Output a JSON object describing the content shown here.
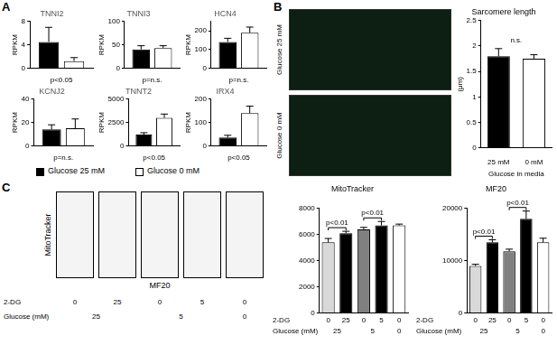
{
  "panel_labels": [
    "A",
    "B",
    "C"
  ],
  "micrographs": [
    "Glucose 25 mM",
    "Glucose 0 mM"
  ],
  "flow_plots": {
    "y_label": "MitoTracker",
    "x_label": "MF20",
    "rows": [
      {
        "label": "2-DG",
        "cells": [
          {
            "label": "0",
            "span": 1
          },
          {
            "label": "25",
            "span": 1
          },
          {
            "label": "0",
            "span": 1
          },
          {
            "label": "5",
            "span": 1
          },
          {
            "label": "0",
            "span": 1
          }
        ]
      },
      {
        "label": "Glucose (mM)",
        "cells": [
          {
            "label": "25",
            "span": 2
          },
          {
            "label": "5",
            "span": 2
          },
          {
            "label": "0",
            "span": 1
          }
        ]
      }
    ]
  },
  "chart_data": [
    {
      "type": "bar",
      "title": "TNNI2",
      "y_label": "RPKM",
      "categories": [
        null
      ],
      "series": [
        {
          "name": "Glucose 25 mM",
          "color": "#000000",
          "values": [
            4.5
          ],
          "errors": [
            2.5
          ]
        },
        {
          "name": "Glucose 0 mM",
          "color": "#ffffff",
          "values": [
            1.2
          ],
          "errors": [
            0.6
          ]
        }
      ],
      "annotation": "p<0.05",
      "ylim": [
        0,
        8
      ],
      "yticks": [
        0,
        4,
        8
      ],
      "grid": false
    },
    {
      "type": "bar",
      "title": "TNNI3",
      "y_label": "RPKM",
      "categories": [
        null
      ],
      "series": [
        {
          "name": "Glucose 25 mM",
          "color": "#000000",
          "values": [
            40
          ],
          "errors": [
            8
          ]
        },
        {
          "name": "Glucose 0 mM",
          "color": "#ffffff",
          "values": [
            43
          ],
          "errors": [
            5
          ]
        }
      ],
      "annotation": "p=n.s.",
      "ylim": [
        0,
        100
      ],
      "yticks": [
        0,
        50,
        100
      ],
      "grid": false
    },
    {
      "type": "bar",
      "title": "HCN4",
      "y_label": "RPKM",
      "categories": [
        null
      ],
      "series": [
        {
          "name": "Glucose 25 mM",
          "color": "#000000",
          "values": [
            140
          ],
          "errors": [
            20
          ]
        },
        {
          "name": "Glucose 0 mM",
          "color": "#ffffff",
          "values": [
            190
          ],
          "errors": [
            30
          ]
        }
      ],
      "annotation": "p=n.s.",
      "ylim": [
        0,
        250
      ],
      "yticks": [
        0,
        100,
        200
      ],
      "grid": false
    },
    {
      "type": "bar",
      "title": "KCNJ2",
      "y_label": "RPKM",
      "categories": [
        null
      ],
      "series": [
        {
          "name": "Glucose 25 mM",
          "color": "#000000",
          "values": [
            14
          ],
          "errors": [
            4
          ]
        },
        {
          "name": "Glucose 0 mM",
          "color": "#ffffff",
          "values": [
            15
          ],
          "errors": [
            8
          ]
        }
      ],
      "annotation": "p=n.s.",
      "ylim": [
        0,
        40
      ],
      "yticks": [
        0,
        20,
        40
      ],
      "grid": false
    },
    {
      "type": "bar",
      "title": "TNNT2",
      "y_label": "RPKM",
      "categories": [
        null
      ],
      "series": [
        {
          "name": "Glucose 25 mM",
          "color": "#000000",
          "values": [
            1200
          ],
          "errors": [
            200
          ]
        },
        {
          "name": "Glucose 0 mM",
          "color": "#ffffff",
          "values": [
            3000
          ],
          "errors": [
            400
          ]
        }
      ],
      "annotation": "p<0.05",
      "ylim": [
        0,
        5000
      ],
      "yticks": [
        0,
        2500,
        5000
      ],
      "grid": false
    },
    {
      "type": "bar",
      "title": "IRX4",
      "y_label": "RPKM",
      "categories": [
        null
      ],
      "series": [
        {
          "name": "Glucose 25 mM",
          "color": "#000000",
          "values": [
            35
          ],
          "errors": [
            10
          ]
        },
        {
          "name": "Glucose 0 mM",
          "color": "#ffffff",
          "values": [
            140
          ],
          "errors": [
            30
          ]
        }
      ],
      "annotation": "p<0.05",
      "ylim": [
        0,
        200
      ],
      "yticks": [
        0,
        100,
        200
      ],
      "grid": false
    },
    {
      "type": "bar",
      "title": "Sarcomere length",
      "y_label": "(μm)",
      "x_label": "Glucose in media",
      "categories": [
        "25 mM",
        "0 mM"
      ],
      "values": [
        1.8,
        1.75
      ],
      "errors": [
        0.15,
        0.08
      ],
      "colors": [
        "#000000",
        "#ffffff"
      ],
      "annotation": "n.s.",
      "ylim": [
        0,
        2.5
      ],
      "yticks": [
        0,
        0.5,
        1,
        1.5,
        2,
        2.5
      ],
      "grid": false
    },
    {
      "type": "bar",
      "title": "MitoTracker",
      "categories": [
        "0",
        "25",
        "0",
        "5",
        "0"
      ],
      "x_groups": [
        {
          "label": "25",
          "span": 2
        },
        {
          "label": "5",
          "span": 2
        },
        {
          "label": "0",
          "span": 1
        }
      ],
      "x_row_labels": [
        "2-DG",
        "Glucose (mM)"
      ],
      "values": [
        5400,
        6100,
        6400,
        6700,
        6700
      ],
      "errors": [
        300,
        150,
        150,
        300,
        100
      ],
      "colors": [
        "#d9d9d9",
        "#000000",
        "#808080",
        "#000000",
        "#ffffff"
      ],
      "comparisons": [
        {
          "from": 0,
          "to": 1,
          "label": "p<0.01"
        },
        {
          "from": 2,
          "to": 3,
          "label": "p<0.01"
        }
      ],
      "ylim": [
        0,
        8000
      ],
      "yticks": [
        0,
        2000,
        4000,
        6000,
        8000
      ],
      "grid": false
    },
    {
      "type": "bar",
      "title": "MF20",
      "categories": [
        "0",
        "25",
        "0",
        "5",
        "0"
      ],
      "x_groups": [
        {
          "label": "25",
          "span": 2
        },
        {
          "label": "5",
          "span": 2
        },
        {
          "label": "0",
          "span": 1
        }
      ],
      "x_row_labels": [
        "2-DG",
        "Glucose (mM)"
      ],
      "values": [
        9000,
        13500,
        11800,
        18000,
        13500
      ],
      "errors": [
        300,
        500,
        400,
        1500,
        800
      ],
      "colors": [
        "#d9d9d9",
        "#000000",
        "#808080",
        "#000000",
        "#ffffff"
      ],
      "comparisons": [
        {
          "from": 0,
          "to": 1,
          "label": "p<0.01"
        },
        {
          "from": 2,
          "to": 3,
          "label": "p<0.01"
        }
      ],
      "ylim": [
        0,
        20000
      ],
      "yticks": [
        0,
        10000,
        20000
      ],
      "grid": false
    }
  ]
}
